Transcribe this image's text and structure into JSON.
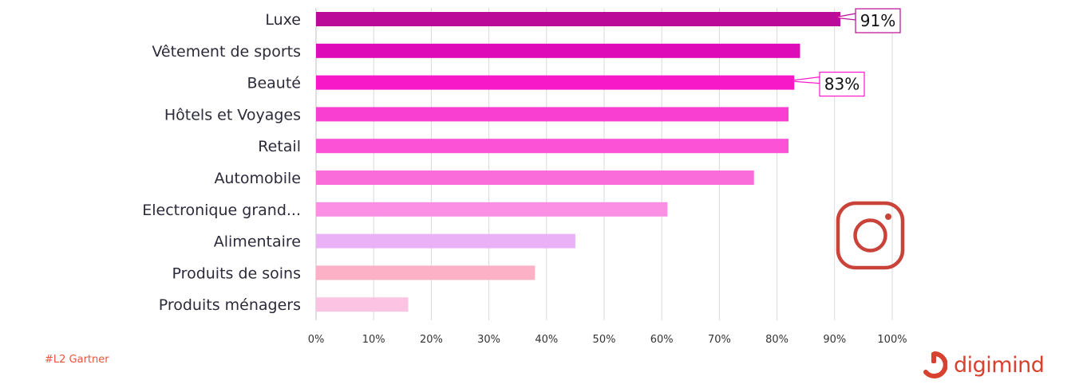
{
  "chart_data": {
    "type": "bar",
    "orientation": "horizontal",
    "categories": [
      "Luxe",
      "Vêtement de sports",
      "Beauté",
      "Hôtels et Voyages",
      "Retail",
      "Automobile",
      "Electronique grand...",
      "Alimentaire",
      "Produits de soins",
      "Produits ménagers"
    ],
    "values": [
      91,
      84,
      83,
      82,
      82,
      76,
      61,
      45,
      38,
      16
    ],
    "colors": [
      "#bb0a98",
      "#de0cb8",
      "#f719c7",
      "#f93fd1",
      "#fb52d6",
      "#fb6cdb",
      "#fb8fe4",
      "#ebb1f7",
      "#fdb1c6",
      "#fdc3e2"
    ],
    "xlim": [
      0,
      100
    ],
    "xticks": [
      "0%",
      "10%",
      "20%",
      "30%",
      "40%",
      "50%",
      "60%",
      "70%",
      "80%",
      "90%",
      "100%"
    ],
    "grid": "vertical",
    "annotations": [
      {
        "category": "Luxe",
        "text": "91%",
        "color": "#bb0a98"
      },
      {
        "category": "Beauté",
        "text": "83%",
        "color": "#f719c7"
      }
    ]
  },
  "footer": {
    "source": "#L2 Gartner",
    "brand": "digimind",
    "brand_color": "#d7412f"
  },
  "icons": {
    "social": "instagram-icon",
    "social_color": "#c9433a"
  }
}
